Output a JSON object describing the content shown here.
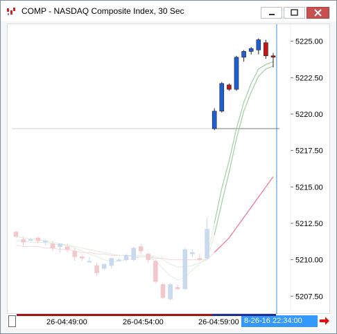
{
  "window": {
    "title": "COMP - NASDAQ Composite Index, 30 Sec",
    "icon": "candlestick-app-icon",
    "buttons": [
      "minimize-icon",
      "maximize-icon",
      "close-icon"
    ]
  },
  "chart_data": {
    "type": "candlestick",
    "title": "COMP - NASDAQ Composite Index, 30 Sec",
    "y_ticks": [
      "5225.00",
      "5222.50",
      "5220.00",
      "5217.50",
      "5215.00",
      "5212.50",
      "5210.00",
      "5207.50"
    ],
    "ylim": [
      5206.8,
      5225.6
    ],
    "x_tick_labels": [
      "26-04:49:00",
      "26-04:54:00",
      "26-04:59:00"
    ],
    "current_time_label": "8-26-16 22:34:00",
    "horizontal_line_level": 5219.0,
    "grid": false,
    "candles": [
      {
        "o": 5211.9,
        "h": 5212.0,
        "l": 5211.5,
        "c": 5211.6,
        "faded": true
      },
      {
        "o": 5211.4,
        "h": 5211.6,
        "l": 5210.9,
        "c": 5211.2,
        "faded": true
      },
      {
        "o": 5211.4,
        "h": 5211.5,
        "l": 5211.3,
        "c": 5211.4,
        "faded": true
      },
      {
        "o": 5211.5,
        "h": 5211.6,
        "l": 5211.1,
        "c": 5211.3,
        "faded": true
      },
      {
        "o": 5211.2,
        "h": 5211.4,
        "l": 5211.0,
        "c": 5211.3,
        "faded": true
      },
      {
        "o": 5211.1,
        "h": 5211.3,
        "l": 5210.6,
        "c": 5210.8,
        "faded": true
      },
      {
        "o": 5210.9,
        "h": 5211.1,
        "l": 5210.5,
        "c": 5211.1,
        "faded": true
      },
      {
        "o": 5210.9,
        "h": 5211.1,
        "l": 5210.5,
        "c": 5210.7,
        "faded": true
      },
      {
        "o": 5210.6,
        "h": 5210.8,
        "l": 5209.9,
        "c": 5210.2,
        "faded": true
      },
      {
        "o": 5210.2,
        "h": 5210.3,
        "l": 5209.9,
        "c": 5210.1,
        "faded": true
      },
      {
        "o": 5209.9,
        "h": 5210.2,
        "l": 5209.8,
        "c": 5209.9,
        "faded": true
      },
      {
        "o": 5209.6,
        "h": 5209.8,
        "l": 5208.9,
        "c": 5209.1,
        "faded": true
      },
      {
        "o": 5209.4,
        "h": 5209.7,
        "l": 5209.3,
        "c": 5209.7,
        "faded": true
      },
      {
        "o": 5209.6,
        "h": 5210.1,
        "l": 5209.4,
        "c": 5210.1,
        "faded": true
      },
      {
        "o": 5210.0,
        "h": 5210.1,
        "l": 5209.9,
        "c": 5210.0,
        "faded": true
      },
      {
        "o": 5210.0,
        "h": 5210.4,
        "l": 5209.9,
        "c": 5210.3,
        "faded": true
      },
      {
        "o": 5210.0,
        "h": 5210.9,
        "l": 5209.9,
        "c": 5210.8,
        "faded": true
      },
      {
        "o": 5210.9,
        "h": 5211.1,
        "l": 5210.4,
        "c": 5210.6,
        "faded": true
      },
      {
        "o": 5210.4,
        "h": 5210.5,
        "l": 5209.8,
        "c": 5210.0,
        "faded": true
      },
      {
        "o": 5209.9,
        "h": 5210.0,
        "l": 5208.4,
        "c": 5208.5,
        "faded": true
      },
      {
        "o": 5208.3,
        "h": 5208.4,
        "l": 5207.3,
        "c": 5207.4,
        "faded": true
      },
      {
        "o": 5207.3,
        "h": 5208.4,
        "l": 5207.2,
        "c": 5208.3,
        "faded": true
      },
      {
        "o": 5208.1,
        "h": 5208.3,
        "l": 5207.9,
        "c": 5208.0,
        "faded": true
      },
      {
        "o": 5208.0,
        "h": 5210.8,
        "l": 5207.9,
        "c": 5210.7,
        "faded": true
      },
      {
        "o": 5210.4,
        "h": 5210.7,
        "l": 5210.2,
        "c": 5210.5,
        "faded": true
      },
      {
        "o": 5210.1,
        "h": 5210.4,
        "l": 5209.9,
        "c": 5210.0,
        "faded": true
      },
      {
        "o": 5210.1,
        "h": 5212.9,
        "l": 5210.0,
        "c": 5212.1,
        "faded": true
      },
      {
        "o": 5219.0,
        "h": 5220.4,
        "l": 5218.9,
        "c": 5220.2,
        "faded": false
      },
      {
        "o": 5220.2,
        "h": 5222.2,
        "l": 5220.1,
        "c": 5222.1,
        "faded": false
      },
      {
        "o": 5222.0,
        "h": 5222.1,
        "l": 5221.6,
        "c": 5221.7,
        "faded": false
      },
      {
        "o": 5221.7,
        "h": 5224.0,
        "l": 5221.6,
        "c": 5223.9,
        "faded": false
      },
      {
        "o": 5223.9,
        "h": 5224.4,
        "l": 5223.6,
        "c": 5224.3,
        "faded": false
      },
      {
        "o": 5224.3,
        "h": 5224.6,
        "l": 5224.1,
        "c": 5224.5,
        "faded": false
      },
      {
        "o": 5224.4,
        "h": 5225.2,
        "l": 5224.1,
        "c": 5225.1,
        "faded": false
      },
      {
        "o": 5224.9,
        "h": 5225.1,
        "l": 5223.8,
        "c": 5224.0,
        "faded": false
      },
      {
        "o": 5224.0,
        "h": 5224.2,
        "l": 5223.2,
        "c": 5223.9,
        "faded": false
      }
    ],
    "ma_fast": [
      5211.6,
      5211.5,
      5211.4,
      5211.4,
      5211.3,
      5211.2,
      5211.1,
      5211.0,
      5210.8,
      5210.6,
      5210.4,
      5210.2,
      5210.0,
      5209.9,
      5209.9,
      5210.0,
      5210.1,
      5210.2,
      5210.2,
      5209.9,
      5209.4,
      5208.9,
      5208.6,
      5208.8,
      5209.3,
      5209.7,
      5210.2,
      5212.5,
      5214.9,
      5216.8,
      5219.0,
      5220.8,
      5222.1,
      5223.1,
      5223.4,
      5223.6
    ],
    "ma_slow": [
      5211.3,
      5211.3,
      5211.2,
      5211.2,
      5211.2,
      5211.1,
      5211.0,
      5211.0,
      5210.9,
      5210.8,
      5210.7,
      5210.6,
      5210.5,
      5210.4,
      5210.3,
      5210.3,
      5210.3,
      5210.3,
      5210.3,
      5210.2,
      5210.0,
      5209.7,
      5209.5,
      5209.5,
      5209.6,
      5209.8,
      5210.0,
      5211.7,
      5213.9,
      5216.0,
      5218.3,
      5220.2,
      5221.5,
      5222.6,
      5223.1,
      5223.3
    ],
    "ma_long": [
      5211.0,
      5210.9,
      5210.9,
      5210.9,
      5210.8,
      5210.8,
      5210.7,
      5210.7,
      5210.6,
      5210.5,
      5210.5,
      5210.4,
      5210.4,
      5210.3,
      5210.3,
      5210.3,
      5210.2,
      5210.2,
      5210.2,
      5210.1,
      5210.1,
      5210.0,
      5210.0,
      5210.0,
      5210.0,
      5210.0,
      5210.0,
      5210.5,
      5211.0,
      5211.5,
      5212.2,
      5212.9,
      5213.6,
      5214.3,
      5215.0,
      5215.7
    ],
    "colors": {
      "up_candle": "#1f5fd0",
      "down_candle": "#c81414",
      "faded_up": "#c9d9ee",
      "faded_down": "#f2c8cc",
      "ma_fast": "#9ed09e",
      "ma_slow": "#9ed09e",
      "ma_long": "#f07090",
      "cursor_line": "#3a8fd8",
      "horizontal_line": "#7a7a7a",
      "time_bar": "#a51414",
      "time_bar_recent": "#1d2f8f"
    }
  },
  "bottom_bar": {
    "scroll_right_icon": "red-right-arrow-icon"
  }
}
